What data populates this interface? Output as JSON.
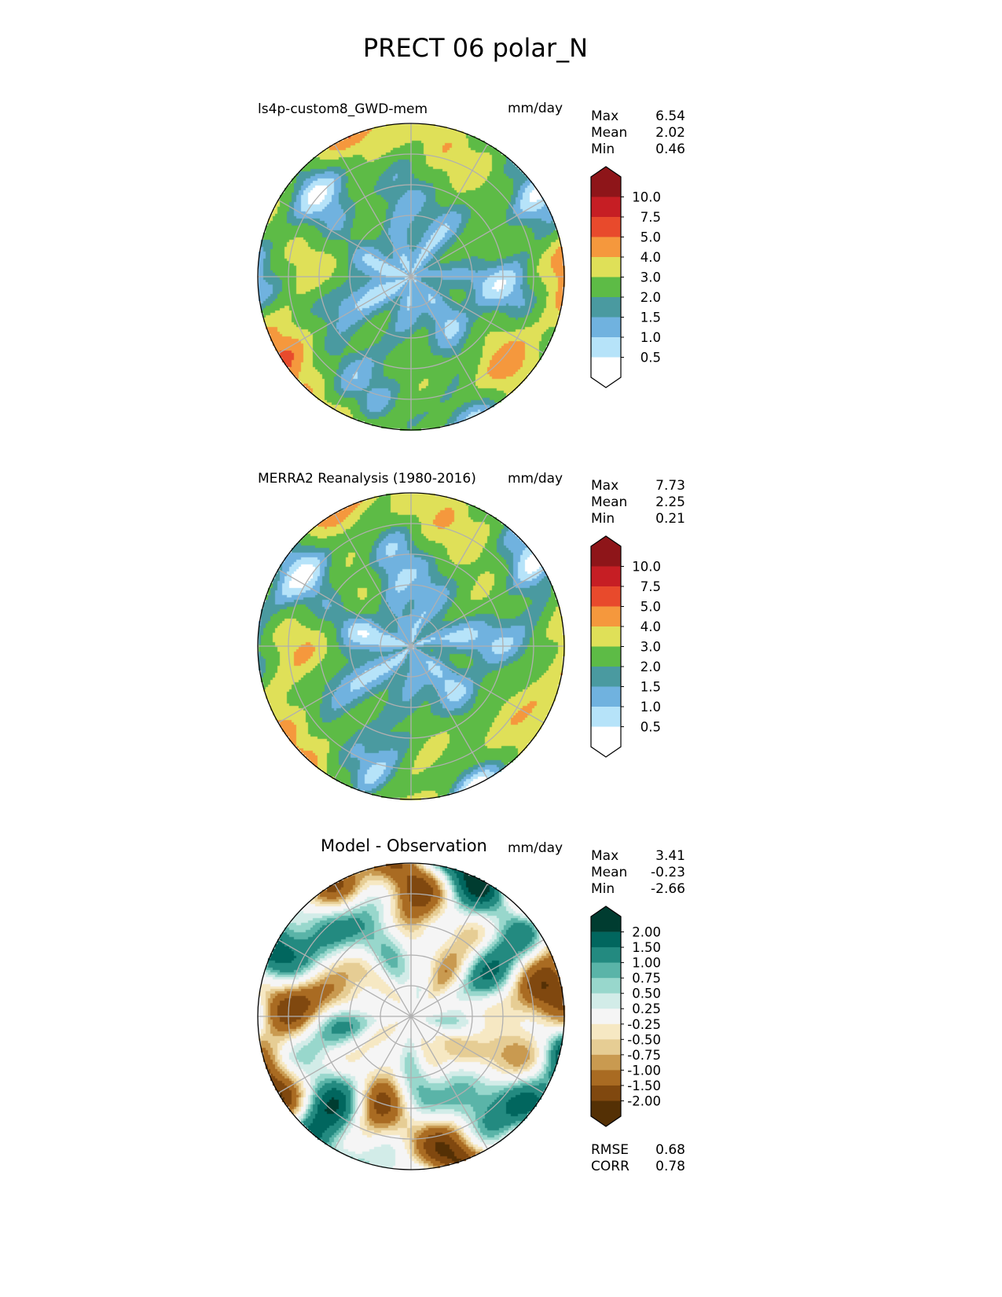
{
  "figure_title": "PRECT 06 polar_N",
  "chart_data": [
    {
      "type": "heatmap",
      "projection": "north polar stereographic",
      "title": "ls4p-custom8_GWD-mem",
      "units": "mm/day",
      "stats": {
        "max_label": "Max",
        "max": "6.54",
        "mean_label": "Mean",
        "mean": "2.02",
        "min_label": "Min",
        "min": "0.46"
      },
      "levels": [
        "10.0",
        "7.5",
        "5.0",
        "4.0",
        "3.0",
        "2.0",
        "1.5",
        "1.0",
        "0.5"
      ],
      "colors": [
        "#8e1519",
        "#c61e24",
        "#e84a2c",
        "#f5983d",
        "#dfe058",
        "#5dbb46",
        "#4a9aa0",
        "#70b2df",
        "#b6e3f9",
        "#ffffff"
      ]
    },
    {
      "type": "heatmap",
      "projection": "north polar stereographic",
      "title": "MERRA2 Reanalysis (1980-2016)",
      "units": "mm/day",
      "stats": {
        "max_label": "Max",
        "max": "7.73",
        "mean_label": "Mean",
        "mean": "2.25",
        "min_label": "Min",
        "min": "0.21"
      },
      "levels": [
        "10.0",
        "7.5",
        "5.0",
        "4.0",
        "3.0",
        "2.0",
        "1.5",
        "1.0",
        "0.5"
      ],
      "colors": [
        "#8e1519",
        "#c61e24",
        "#e84a2c",
        "#f5983d",
        "#dfe058",
        "#5dbb46",
        "#4a9aa0",
        "#70b2df",
        "#b6e3f9",
        "#ffffff"
      ]
    },
    {
      "type": "heatmap",
      "projection": "north polar stereographic",
      "title": "Model - Observation",
      "units": "mm/day",
      "stats": {
        "max_label": "Max",
        "max": "3.41",
        "mean_label": "Mean",
        "mean": "-0.23",
        "min_label": "Min",
        "min": "-2.66"
      },
      "levels": [
        "2.00",
        "1.50",
        "1.00",
        "0.75",
        "0.50",
        "0.25",
        "-0.25",
        "-0.50",
        "-0.75",
        "-1.00",
        "-1.50",
        "-2.00"
      ],
      "colors": [
        "#003c30",
        "#01665e",
        "#238a80",
        "#5ab4a8",
        "#98d7cc",
        "#d2ece8",
        "#f5f5f5",
        "#f6e8c3",
        "#e6cd94",
        "#c99a50",
        "#a96b22",
        "#80480f",
        "#543005"
      ],
      "metrics": {
        "rmse_label": "RMSE",
        "rmse": "0.68",
        "corr_label": "CORR",
        "corr": "0.78"
      }
    }
  ]
}
